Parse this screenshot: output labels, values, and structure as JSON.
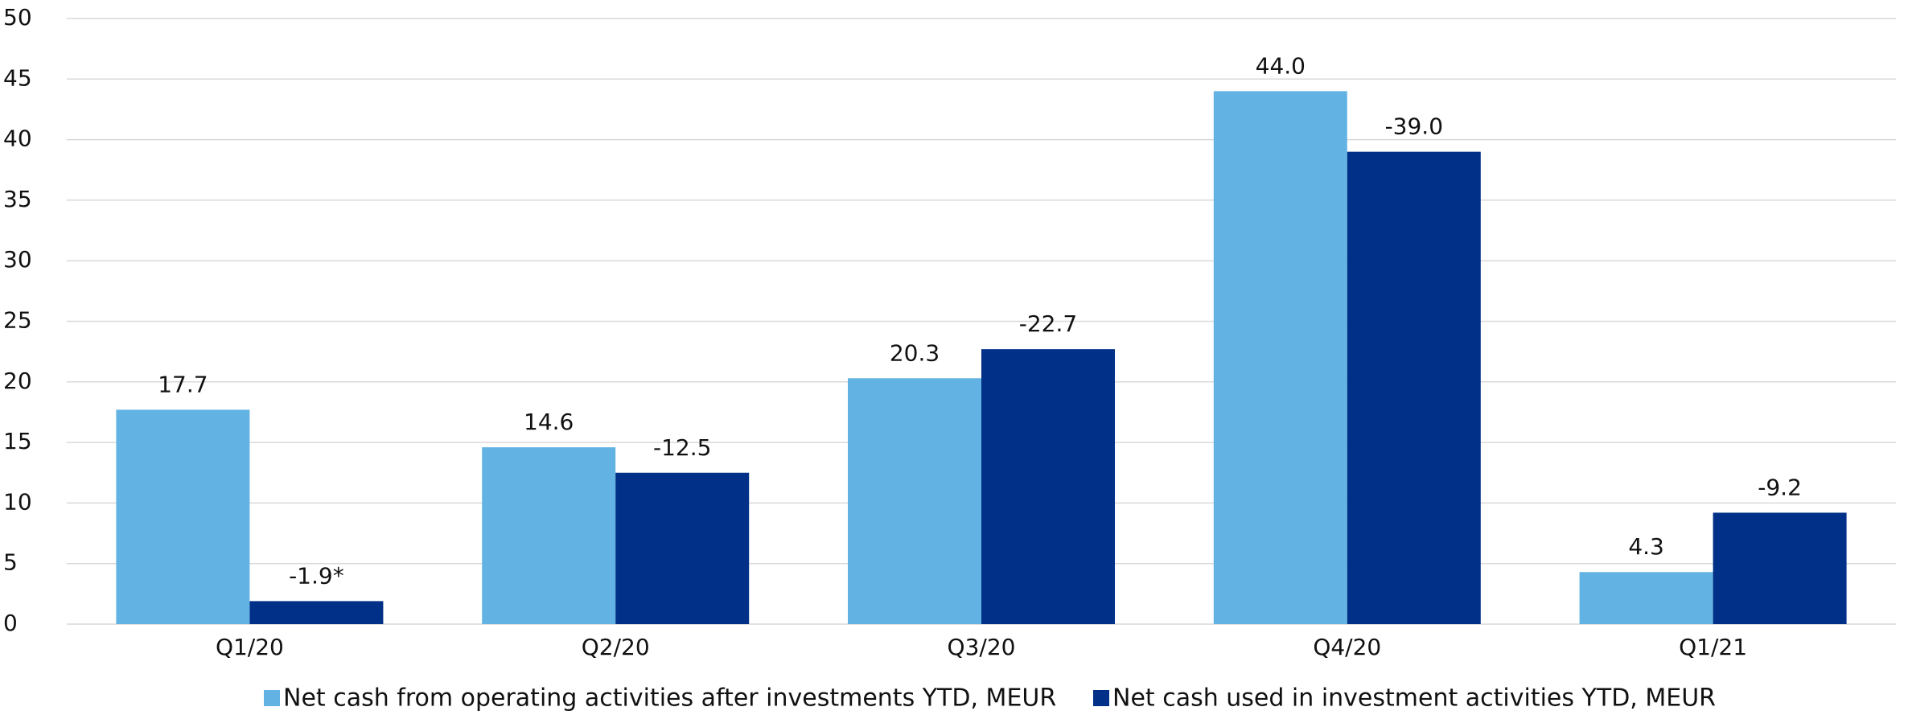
{
  "chart_data": {
    "type": "bar",
    "categories": [
      "Q1/20",
      "Q2/20",
      "Q3/20",
      "Q4/20",
      "Q1/21"
    ],
    "series": [
      {
        "name": "Net cash from operating activities after investments YTD, MEUR",
        "color": "#62b3e4",
        "values": [
          17.7,
          14.6,
          20.3,
          44.0,
          4.3
        ],
        "value_labels": [
          "17.7",
          "14.6",
          "20.3",
          "44.0",
          "4.3"
        ]
      },
      {
        "name": "Net cash used in investment activities YTD, MEUR",
        "color": "#003087",
        "values": [
          1.9,
          12.5,
          22.7,
          39.0,
          9.2
        ],
        "value_labels": [
          "-1.9*",
          "-12.5",
          "-22.7",
          "-39.0",
          "-9.2"
        ]
      }
    ],
    "ylim": [
      0,
      50
    ],
    "yticks": [
      0,
      5,
      10,
      15,
      20,
      25,
      30,
      35,
      40,
      45,
      50
    ],
    "grid": true,
    "legend": "bottom"
  }
}
